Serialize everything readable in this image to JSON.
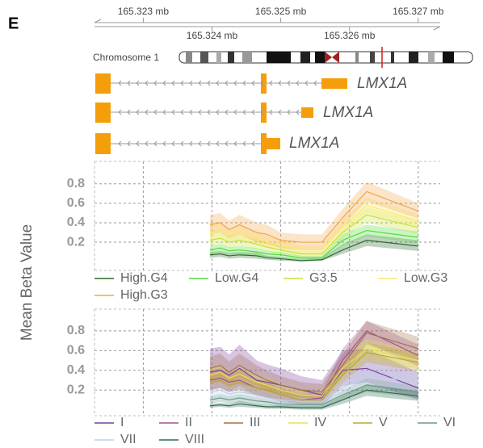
{
  "panel_label": "E",
  "chart_data": [
    {
      "type": "gene_track",
      "chromosome_label": "Chromosome 1",
      "gene_labels": [
        "LMX1A",
        "LMX1A",
        "LMX1A"
      ],
      "xlim": [
        165.32229,
        165.32732
      ],
      "xticks": [
        {
          "value": 165.323,
          "label": "165.323 mb"
        },
        {
          "value": 165.324,
          "label": "165.324 mb"
        },
        {
          "value": 165.325,
          "label": "165.325 mb"
        },
        {
          "value": 165.326,
          "label": "165.326 mb"
        },
        {
          "value": 165.327,
          "label": "165.327 mb"
        }
      ]
    },
    {
      "type": "line",
      "ylabel": "Mean Beta Value",
      "xlim": [
        165.32229,
        165.32732
      ],
      "ylim": [
        -0.09,
        1.03
      ],
      "yticks": [
        0.2,
        0.4,
        0.6,
        0.8
      ],
      "grid": true,
      "x": [
        165.32397,
        165.32412,
        165.32425,
        165.3244,
        165.32465,
        165.3248,
        165.325,
        165.3253,
        165.3256,
        165.3259,
        165.32625,
        165.327
      ],
      "series": [
        {
          "name": "High.G4",
          "color": "#2d6b2d",
          "values": [
            0.07,
            0.08,
            0.06,
            0.07,
            0.06,
            0.04,
            0.03,
            0.01,
            0.02,
            0.12,
            0.22,
            0.16
          ],
          "lower": [
            0.04,
            0.05,
            0.03,
            0.04,
            0.03,
            0.02,
            0.01,
            0.0,
            0.01,
            0.08,
            0.16,
            0.11
          ],
          "upper": [
            0.1,
            0.11,
            0.09,
            0.1,
            0.09,
            0.06,
            0.05,
            0.03,
            0.04,
            0.18,
            0.28,
            0.22
          ]
        },
        {
          "name": "Low.G4",
          "color": "#4fdc3c",
          "values": [
            0.12,
            0.14,
            0.11,
            0.12,
            0.1,
            0.08,
            0.07,
            0.04,
            0.04,
            0.22,
            0.32,
            0.25
          ],
          "lower": [
            0.08,
            0.1,
            0.07,
            0.08,
            0.06,
            0.05,
            0.04,
            0.02,
            0.02,
            0.16,
            0.26,
            0.19
          ],
          "upper": [
            0.16,
            0.18,
            0.15,
            0.16,
            0.14,
            0.11,
            0.1,
            0.06,
            0.06,
            0.28,
            0.38,
            0.31
          ]
        },
        {
          "name": "G3.5",
          "color": "#c6e23a",
          "values": [
            0.22,
            0.24,
            0.2,
            0.22,
            0.18,
            0.15,
            0.12,
            0.08,
            0.08,
            0.3,
            0.48,
            0.35
          ],
          "lower": [
            0.16,
            0.18,
            0.14,
            0.16,
            0.13,
            0.1,
            0.08,
            0.05,
            0.05,
            0.24,
            0.4,
            0.28
          ],
          "upper": [
            0.28,
            0.3,
            0.26,
            0.28,
            0.23,
            0.2,
            0.16,
            0.11,
            0.11,
            0.36,
            0.56,
            0.42
          ]
        },
        {
          "name": "Low.G3",
          "color": "#fbe86a",
          "values": [
            0.3,
            0.32,
            0.27,
            0.3,
            0.24,
            0.2,
            0.17,
            0.12,
            0.12,
            0.36,
            0.58,
            0.42
          ],
          "lower": [
            0.22,
            0.24,
            0.2,
            0.22,
            0.17,
            0.14,
            0.11,
            0.07,
            0.07,
            0.29,
            0.5,
            0.35
          ],
          "upper": [
            0.38,
            0.4,
            0.34,
            0.38,
            0.31,
            0.26,
            0.23,
            0.17,
            0.17,
            0.43,
            0.66,
            0.49
          ]
        },
        {
          "name": "High.G3",
          "color": "#f2a64a",
          "values": [
            0.38,
            0.4,
            0.33,
            0.38,
            0.3,
            0.28,
            0.22,
            0.2,
            0.2,
            0.45,
            0.72,
            0.52
          ],
          "lower": [
            0.28,
            0.3,
            0.24,
            0.28,
            0.2,
            0.18,
            0.14,
            0.12,
            0.12,
            0.36,
            0.62,
            0.44
          ],
          "upper": [
            0.48,
            0.5,
            0.42,
            0.48,
            0.4,
            0.38,
            0.3,
            0.28,
            0.28,
            0.54,
            0.82,
            0.6
          ]
        }
      ]
    },
    {
      "type": "line",
      "xlim": [
        165.32229,
        165.32732
      ],
      "ylim": [
        -0.06,
        1.02
      ],
      "yticks": [
        0.2,
        0.4,
        0.6,
        0.8
      ],
      "grid": true,
      "x": [
        165.32397,
        165.32412,
        165.32425,
        165.3244,
        165.32465,
        165.3248,
        165.325,
        165.3253,
        165.3256,
        165.3259,
        165.32625,
        165.327
      ],
      "series": [
        {
          "name": "I",
          "color": "#7b3f9e",
          "values": [
            0.38,
            0.4,
            0.35,
            0.42,
            0.3,
            0.28,
            0.25,
            0.2,
            0.15,
            0.4,
            0.42,
            0.22
          ],
          "lower": [
            0.2,
            0.22,
            0.18,
            0.24,
            0.14,
            0.12,
            0.1,
            0.06,
            0.04,
            0.24,
            0.28,
            0.1
          ],
          "upper": [
            0.62,
            0.64,
            0.56,
            0.66,
            0.5,
            0.46,
            0.42,
            0.34,
            0.3,
            0.6,
            0.62,
            0.38
          ]
        },
        {
          "name": "II",
          "color": "#a0509a",
          "values": [
            0.3,
            0.32,
            0.28,
            0.3,
            0.22,
            0.2,
            0.15,
            0.1,
            0.12,
            0.5,
            0.8,
            0.55
          ],
          "lower": [
            0.2,
            0.22,
            0.18,
            0.2,
            0.14,
            0.12,
            0.08,
            0.05,
            0.06,
            0.38,
            0.68,
            0.44
          ],
          "upper": [
            0.4,
            0.42,
            0.38,
            0.4,
            0.3,
            0.28,
            0.22,
            0.16,
            0.18,
            0.62,
            0.9,
            0.66
          ]
        },
        {
          "name": "III",
          "color": "#a0724a",
          "values": [
            0.42,
            0.45,
            0.38,
            0.45,
            0.35,
            0.3,
            0.25,
            0.2,
            0.18,
            0.45,
            0.78,
            0.62
          ],
          "lower": [
            0.3,
            0.33,
            0.27,
            0.33,
            0.25,
            0.2,
            0.16,
            0.12,
            0.1,
            0.34,
            0.66,
            0.5
          ],
          "upper": [
            0.54,
            0.57,
            0.49,
            0.57,
            0.45,
            0.4,
            0.34,
            0.28,
            0.26,
            0.56,
            0.9,
            0.74
          ]
        },
        {
          "name": "IV",
          "color": "#e8e050",
          "values": [
            0.35,
            0.38,
            0.32,
            0.36,
            0.28,
            0.25,
            0.2,
            0.15,
            0.14,
            0.42,
            0.62,
            0.5
          ],
          "lower": [
            0.27,
            0.3,
            0.25,
            0.28,
            0.21,
            0.18,
            0.14,
            0.1,
            0.09,
            0.34,
            0.52,
            0.41
          ],
          "upper": [
            0.43,
            0.46,
            0.39,
            0.44,
            0.35,
            0.32,
            0.26,
            0.2,
            0.19,
            0.5,
            0.72,
            0.59
          ]
        },
        {
          "name": "V",
          "color": "#b8a830",
          "values": [
            0.28,
            0.3,
            0.25,
            0.28,
            0.22,
            0.2,
            0.15,
            0.1,
            0.1,
            0.35,
            0.58,
            0.48
          ],
          "lower": [
            0.2,
            0.22,
            0.18,
            0.2,
            0.15,
            0.13,
            0.1,
            0.06,
            0.06,
            0.27,
            0.48,
            0.39
          ],
          "upper": [
            0.36,
            0.38,
            0.32,
            0.36,
            0.29,
            0.27,
            0.2,
            0.14,
            0.14,
            0.43,
            0.68,
            0.57
          ]
        },
        {
          "name": "VI",
          "color": "#6e9a8a",
          "values": [
            0.1,
            0.12,
            0.1,
            0.12,
            0.09,
            0.08,
            0.06,
            0.05,
            0.05,
            0.15,
            0.25,
            0.18
          ],
          "lower": [
            0.06,
            0.08,
            0.06,
            0.08,
            0.05,
            0.05,
            0.03,
            0.02,
            0.02,
            0.1,
            0.18,
            0.12
          ],
          "upper": [
            0.14,
            0.16,
            0.14,
            0.16,
            0.13,
            0.11,
            0.09,
            0.08,
            0.08,
            0.2,
            0.32,
            0.24
          ]
        },
        {
          "name": "VII",
          "color": "#bcd0e8",
          "values": [
            0.18,
            0.2,
            0.16,
            0.18,
            0.15,
            0.12,
            0.1,
            0.08,
            0.08,
            0.22,
            0.35,
            0.28
          ],
          "lower": [
            0.1,
            0.12,
            0.09,
            0.1,
            0.08,
            0.06,
            0.05,
            0.04,
            0.04,
            0.14,
            0.25,
            0.19
          ],
          "upper": [
            0.26,
            0.28,
            0.23,
            0.26,
            0.22,
            0.18,
            0.15,
            0.12,
            0.12,
            0.3,
            0.45,
            0.37
          ]
        },
        {
          "name": "VIII",
          "color": "#2e6e4e",
          "values": [
            0.04,
            0.05,
            0.04,
            0.06,
            0.04,
            0.03,
            0.03,
            0.02,
            0.02,
            0.1,
            0.2,
            0.14
          ],
          "lower": [
            0.02,
            0.03,
            0.02,
            0.03,
            0.02,
            0.01,
            0.01,
            0.0,
            0.0,
            0.06,
            0.14,
            0.09
          ],
          "upper": [
            0.06,
            0.07,
            0.06,
            0.09,
            0.06,
            0.05,
            0.05,
            0.04,
            0.04,
            0.14,
            0.26,
            0.19
          ]
        }
      ]
    }
  ]
}
